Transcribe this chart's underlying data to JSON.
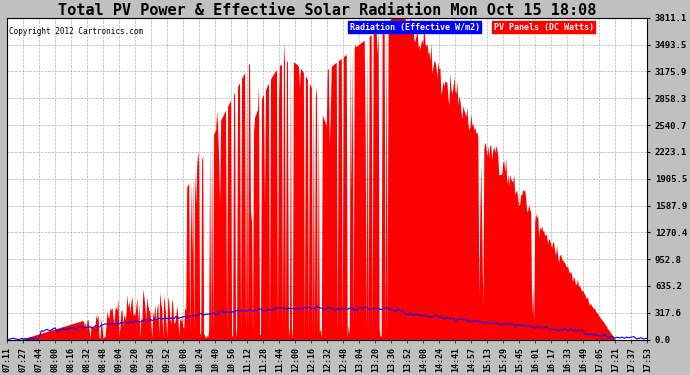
{
  "title": "Total PV Power & Effective Solar Radiation Mon Oct 15 18:08",
  "copyright": "Copyright 2012 Cartronics.com",
  "legend_radiation": "Radiation (Effective W/m2)",
  "legend_pv": "PV Panels (DC Watts)",
  "ytick_values": [
    0.0,
    317.6,
    635.2,
    952.8,
    1270.4,
    1587.9,
    1905.5,
    2223.1,
    2540.7,
    2858.3,
    3175.9,
    3493.5,
    3811.1
  ],
  "ymax": 3811.1,
  "bg_color": "#c0c0c0",
  "plot_bg_color": "#ffffff",
  "grid_color": "#aaaaaa",
  "radiation_color": "#0000ff",
  "pv_color": "#ff0000",
  "tick_font_size": 6.0,
  "title_font_size": 11.0,
  "xtick_labels": [
    "07:11",
    "07:27",
    "07:44",
    "08:00",
    "08:16",
    "08:32",
    "08:48",
    "09:04",
    "09:20",
    "09:36",
    "09:52",
    "10:08",
    "10:24",
    "10:40",
    "10:56",
    "11:12",
    "11:28",
    "11:44",
    "12:00",
    "12:16",
    "12:32",
    "12:48",
    "13:04",
    "13:20",
    "13:36",
    "13:52",
    "14:08",
    "14:24",
    "14:41",
    "14:57",
    "15:13",
    "15:29",
    "15:45",
    "16:01",
    "16:17",
    "16:33",
    "16:49",
    "17:05",
    "17:21",
    "17:37",
    "17:53"
  ],
  "n_xticks": 41
}
